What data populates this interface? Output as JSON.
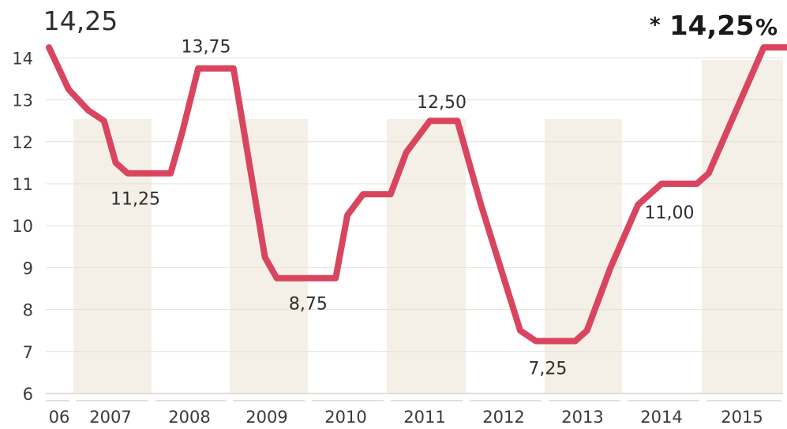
{
  "chart_data": {
    "type": "line",
    "colors": {
      "line": "#d9455f",
      "band": "#f4f0e8",
      "grid": "#e4e0d8",
      "axis": "#d9d4ca"
    },
    "ylim": [
      6,
      14.5
    ],
    "y_ticks": [
      "6",
      "7",
      "8",
      "9",
      "10",
      "11",
      "12",
      "13",
      "14"
    ],
    "x_labels": [
      "06",
      "2007",
      "2008",
      "2009",
      "2010",
      "2011",
      "2012",
      "2013",
      "2014",
      "2015"
    ],
    "grid": true,
    "series": [
      {
        "x": [
          2006.55,
          2006.8,
          2007.05,
          2007.25,
          2007.4,
          2007.55,
          2007.75,
          2008.1,
          2008.25,
          2008.45,
          2008.7,
          2008.9,
          2009.3,
          2009.45,
          2009.65,
          2010.0,
          2010.2,
          2010.35,
          2010.55,
          2010.9,
          2011.1,
          2011.4,
          2011.75,
          2012.05,
          2012.3,
          2012.55,
          2012.75,
          2012.95,
          2013.25,
          2013.4,
          2013.7,
          2014.05,
          2014.35,
          2014.55,
          2014.8,
          2014.95,
          2015.3,
          2015.65,
          2016.05
        ],
        "values": [
          14.25,
          13.25,
          12.75,
          12.5,
          11.5,
          11.25,
          11.25,
          11.25,
          12.25,
          13.75,
          13.75,
          13.75,
          9.25,
          8.75,
          8.75,
          8.75,
          8.75,
          10.25,
          10.75,
          10.75,
          11.75,
          12.5,
          12.5,
          10.5,
          9.0,
          7.5,
          7.25,
          7.25,
          7.25,
          7.5,
          9.0,
          10.5,
          11.0,
          11.0,
          11.0,
          11.25,
          12.75,
          14.25,
          14.25
        ]
      }
    ],
    "annotations": [
      {
        "text": "14,25",
        "x": 2006.55,
        "y": 14.25
      },
      {
        "text": "13,75",
        "x": 2008.55,
        "y": 13.75
      },
      {
        "text": "11,25",
        "x": 2007.65,
        "y": 11.25
      },
      {
        "text": "8,75",
        "x": 2009.85,
        "y": 8.75
      },
      {
        "text": "12,50",
        "x": 2011.55,
        "y": 12.5
      },
      {
        "text": "7,25",
        "x": 2012.9,
        "y": 7.25
      },
      {
        "text": "11,00",
        "x": 2014.45,
        "y": 11.0
      }
    ],
    "highlight": {
      "star": "*",
      "value": "14,25",
      "unit": "%"
    }
  }
}
